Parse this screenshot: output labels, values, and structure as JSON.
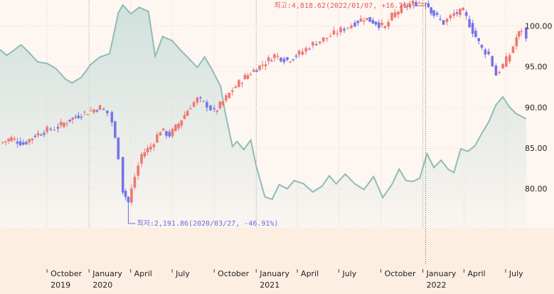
{
  "chart_data": {
    "type": "candlestick",
    "title": "",
    "x_range": [
      "2019-06-20",
      "2022-08-20"
    ],
    "y_range_right": [
      75.2,
      103.2
    ],
    "y_ticks_right": [
      80.0,
      85.0,
      90.0,
      95.0,
      100.0
    ],
    "x_ticks": [
      {
        "date": "2019-10-01",
        "label": "October",
        "year": "2019"
      },
      {
        "date": "2020-01-01",
        "label": "January",
        "year": "2020"
      },
      {
        "date": "2020-04-01",
        "label": "April",
        "year": ""
      },
      {
        "date": "2020-07-01",
        "label": "July",
        "year": ""
      },
      {
        "date": "2020-10-01",
        "label": "October",
        "year": ""
      },
      {
        "date": "2021-01-01",
        "label": "January",
        "year": "2021"
      },
      {
        "date": "2021-04-01",
        "label": "April",
        "year": ""
      },
      {
        "date": "2021-07-01",
        "label": "July",
        "year": ""
      },
      {
        "date": "2021-10-01",
        "label": "October",
        "year": ""
      },
      {
        "date": "2022-01-01",
        "label": "January",
        "year": "2022"
      },
      {
        "date": "2022-04-01",
        "label": "April",
        "year": ""
      },
      {
        "date": "2022-07-01",
        "label": "July",
        "year": ""
      }
    ],
    "grid": true,
    "colors": {
      "up": "#f07870",
      "down": "#7474e8",
      "area_line": "#8fbcb8",
      "area_fill": "#cfe0dc",
      "panel_bg": "#fdf6f1",
      "annotation_high": "#e35a4e",
      "annotation_low": "#6a6ae0"
    },
    "price_points": [
      [
        "2019-06-20",
        85.6
      ],
      [
        "2019-07-15",
        86.2
      ],
      [
        "2019-08-10",
        85.5
      ],
      [
        "2019-09-05",
        86.6
      ],
      [
        "2019-10-01",
        87.2
      ],
      [
        "2019-10-25",
        87.6
      ],
      [
        "2019-11-20",
        88.5
      ],
      [
        "2019-12-15",
        89.2
      ],
      [
        "2020-01-05",
        89.6
      ],
      [
        "2020-01-25",
        90.0
      ],
      [
        "2020-02-10",
        89.3
      ],
      [
        "2020-02-20",
        88.2
      ],
      [
        "2020-03-05",
        84.0
      ],
      [
        "2020-03-15",
        79.8
      ],
      [
        "2020-03-27",
        78.3
      ],
      [
        "2020-04-10",
        81.5
      ],
      [
        "2020-04-25",
        84.2
      ],
      [
        "2020-05-15",
        85.2
      ],
      [
        "2020-06-05",
        87.2
      ],
      [
        "2020-06-25",
        86.6
      ],
      [
        "2020-07-15",
        88.0
      ],
      [
        "2020-08-10",
        90.2
      ],
      [
        "2020-08-25",
        91.0
      ],
      [
        "2020-09-15",
        90.3
      ],
      [
        "2020-10-01",
        89.4
      ],
      [
        "2020-10-20",
        90.7
      ],
      [
        "2020-11-10",
        92.2
      ],
      [
        "2020-12-01",
        93.4
      ],
      [
        "2020-12-20",
        94.3
      ],
      [
        "2021-01-15",
        95.3
      ],
      [
        "2021-02-10",
        96.4
      ],
      [
        "2021-03-10",
        95.8
      ],
      [
        "2021-04-05",
        96.6
      ],
      [
        "2021-05-05",
        97.8
      ],
      [
        "2021-06-05",
        98.6
      ],
      [
        "2021-07-05",
        99.5
      ],
      [
        "2021-08-05",
        100.4
      ],
      [
        "2021-08-25",
        101.0
      ],
      [
        "2021-09-20",
        100.4
      ],
      [
        "2021-10-10",
        99.8
      ],
      [
        "2021-10-25",
        101.2
      ],
      [
        "2021-11-15",
        102.2
      ],
      [
        "2021-12-10",
        102.8
      ],
      [
        "2022-01-07",
        103.0
      ],
      [
        "2022-01-25",
        101.4
      ],
      [
        "2022-02-15",
        100.4
      ],
      [
        "2022-03-10",
        101.5
      ],
      [
        "2022-03-30",
        101.8
      ],
      [
        "2022-04-20",
        99.4
      ],
      [
        "2022-05-10",
        97.2
      ],
      [
        "2022-05-25",
        96.5
      ],
      [
        "2022-06-10",
        94.0
      ],
      [
        "2022-06-25",
        95.2
      ],
      [
        "2022-07-10",
        96.5
      ],
      [
        "2022-07-25",
        98.6
      ],
      [
        "2022-08-05",
        99.6
      ],
      [
        "2022-08-15",
        98.3
      ]
    ],
    "area_points": [
      [
        "2019-06-20",
        97.1
      ],
      [
        "2019-07-05",
        96.4
      ],
      [
        "2019-07-20",
        97.0
      ],
      [
        "2019-08-05",
        97.7
      ],
      [
        "2019-08-20",
        96.9
      ],
      [
        "2019-09-10",
        95.6
      ],
      [
        "2019-10-01",
        95.4
      ],
      [
        "2019-10-20",
        94.8
      ],
      [
        "2019-11-10",
        93.5
      ],
      [
        "2019-11-25",
        93.0
      ],
      [
        "2019-12-15",
        93.7
      ],
      [
        "2020-01-05",
        95.3
      ],
      [
        "2020-01-25",
        96.2
      ],
      [
        "2020-02-15",
        96.6
      ],
      [
        "2020-03-05",
        101.6
      ],
      [
        "2020-03-15",
        102.6
      ],
      [
        "2020-04-01",
        101.5
      ],
      [
        "2020-04-20",
        102.3
      ],
      [
        "2020-05-10",
        101.8
      ],
      [
        "2020-05-25",
        96.3
      ],
      [
        "2020-06-10",
        98.7
      ],
      [
        "2020-07-01",
        98.2
      ],
      [
        "2020-07-20",
        97.0
      ],
      [
        "2020-08-10",
        95.8
      ],
      [
        "2020-08-25",
        94.9
      ],
      [
        "2020-09-10",
        96.2
      ],
      [
        "2020-09-25",
        94.8
      ],
      [
        "2020-10-15",
        92.6
      ],
      [
        "2020-10-25",
        89.4
      ],
      [
        "2020-11-10",
        85.2
      ],
      [
        "2020-11-20",
        85.8
      ],
      [
        "2020-12-05",
        84.8
      ],
      [
        "2020-12-20",
        86.0
      ],
      [
        "2021-01-01",
        82.8
      ],
      [
        "2021-01-20",
        79.0
      ],
      [
        "2021-02-05",
        78.7
      ],
      [
        "2021-02-20",
        80.5
      ],
      [
        "2021-03-10",
        80.0
      ],
      [
        "2021-03-25",
        81.0
      ],
      [
        "2021-04-15",
        80.6
      ],
      [
        "2021-05-05",
        79.6
      ],
      [
        "2021-05-25",
        80.3
      ],
      [
        "2021-06-10",
        81.6
      ],
      [
        "2021-06-25",
        80.6
      ],
      [
        "2021-07-15",
        81.8
      ],
      [
        "2021-08-05",
        80.6
      ],
      [
        "2021-08-25",
        79.9
      ],
      [
        "2021-09-15",
        81.5
      ],
      [
        "2021-10-05",
        78.9
      ],
      [
        "2021-10-25",
        80.5
      ],
      [
        "2021-11-10",
        82.4
      ],
      [
        "2021-11-25",
        81.0
      ],
      [
        "2021-12-10",
        80.9
      ],
      [
        "2021-12-25",
        81.3
      ],
      [
        "2022-01-10",
        84.3
      ],
      [
        "2022-01-25",
        82.6
      ],
      [
        "2022-02-10",
        83.5
      ],
      [
        "2022-02-25",
        82.4
      ],
      [
        "2022-03-10",
        82.0
      ],
      [
        "2022-03-25",
        84.9
      ],
      [
        "2022-04-10",
        84.6
      ],
      [
        "2022-04-25",
        85.3
      ],
      [
        "2022-05-10",
        86.8
      ],
      [
        "2022-05-25",
        88.2
      ],
      [
        "2022-06-10",
        90.3
      ],
      [
        "2022-06-25",
        91.3
      ],
      [
        "2022-07-10",
        90.0
      ],
      [
        "2022-07-25",
        89.2
      ],
      [
        "2022-08-15",
        88.6
      ]
    ],
    "annotations": [
      {
        "kind": "high",
        "date": "2022-01-07",
        "value": 103.0,
        "text": "최고:4,818.62(2022/01/07, +16.71%)"
      },
      {
        "kind": "low",
        "date": "2020-03-27",
        "value": 78.3,
        "text": "최저:2,191.86(2020/03/27, -46.91%)"
      }
    ]
  }
}
